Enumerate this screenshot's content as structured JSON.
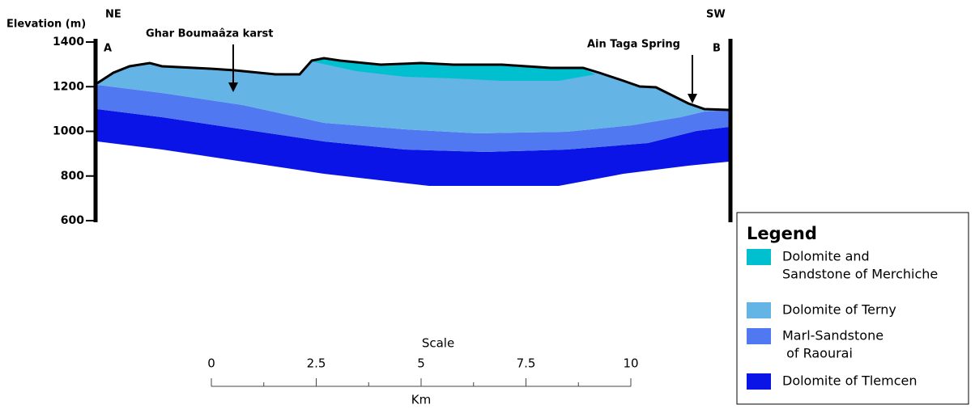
{
  "section": {
    "axis_label": "Elevation (m)",
    "ticks": [
      1400,
      1200,
      1000,
      800,
      600
    ],
    "left_direction": "NE",
    "right_direction": "SW",
    "left_point": "A",
    "right_point": "B",
    "annotations": [
      "Ghar Boumaâza karst",
      "Ain Taga Spring"
    ]
  },
  "scale": {
    "title": "Scale",
    "ticks": [
      0,
      2.5,
      5,
      7.5,
      10
    ],
    "unit": "Km"
  },
  "legend": {
    "title": "Legend",
    "items": [
      {
        "label_lines": [
          "Dolomite and",
          "Sandstone of Merchiche"
        ],
        "color": "#00c0d0"
      },
      {
        "label_lines": [
          "Dolomite of Terny"
        ],
        "color": "#64b4e6"
      },
      {
        "label_lines": [
          "Marl-Sandstone",
          " of Raourai"
        ],
        "color": "#5078f0"
      },
      {
        "label_lines": [
          "Dolomite of Tlemcen"
        ],
        "color": "#0a14e6"
      }
    ]
  }
}
